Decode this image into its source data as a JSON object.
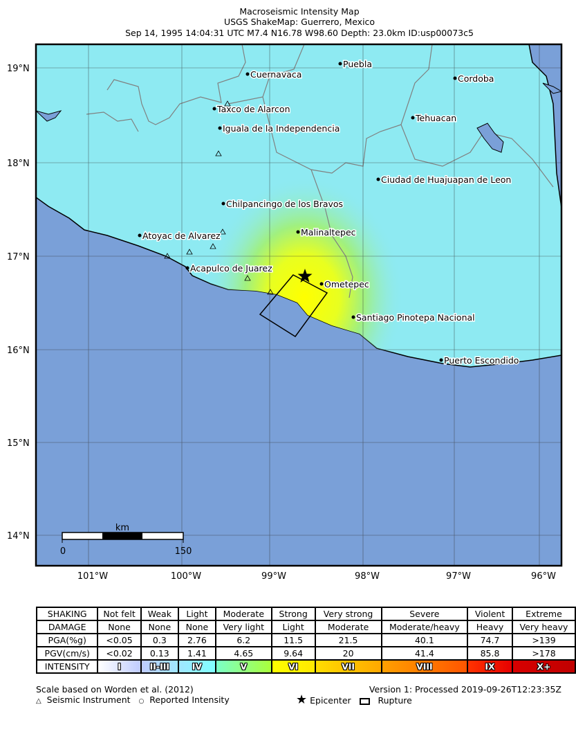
{
  "title": {
    "line1": "Macroseismic Intensity Map",
    "line2": "USGS ShakeMap: Guerrero, Mexico",
    "line3": "Sep 14, 1995 14:04:31 UTC M7.4 N16.78 W98.60 Depth: 23.0km ID:usp00073c5"
  },
  "map": {
    "lat_ticks": [
      "19°N",
      "18°N",
      "17°N",
      "16°N",
      "15°N",
      "14°N"
    ],
    "lon_ticks": [
      "101°W",
      "100°W",
      "99°W",
      "98°W",
      "97°W",
      "96°W"
    ],
    "cities": [
      "Puebla",
      "Cuernavaca",
      "Cordoba",
      "Taxco de Alarcon",
      "Tehuacan",
      "Iguala de la Independencia",
      "Ciudad de Huajuapan de Leon",
      "Chilpancingo de los Bravos",
      "Atoyac de Alvarez",
      "Malinaltepec",
      "Acapulco de Juarez",
      "Ometepec",
      "Santiago Pinotepa Nacional",
      "Puerto Escondido"
    ],
    "scale_bar": {
      "unit": "km",
      "start": "0",
      "end": "150"
    },
    "colors": {
      "ocean": "#7aa0d8",
      "land_low": "#8eeaf2",
      "strong": "#ffff00",
      "border": "#808080"
    }
  },
  "legend": {
    "rows": [
      {
        "header": "SHAKING",
        "cells": [
          "Not felt",
          "Weak",
          "Light",
          "Moderate",
          "Strong",
          "Very strong",
          "Severe",
          "Violent",
          "Extreme"
        ]
      },
      {
        "header": "DAMAGE",
        "cells": [
          "None",
          "None",
          "None",
          "Very light",
          "Light",
          "Moderate",
          "Moderate/heavy",
          "Heavy",
          "Very heavy"
        ]
      },
      {
        "header": "PGA(%g)",
        "cells": [
          "<0.05",
          "0.3",
          "2.76",
          "6.2",
          "11.5",
          "21.5",
          "40.1",
          "74.7",
          ">139"
        ]
      },
      {
        "header": "PGV(cm/s)",
        "cells": [
          "<0.02",
          "0.13",
          "1.41",
          "4.65",
          "9.64",
          "20",
          "41.4",
          "85.8",
          ">178"
        ]
      }
    ],
    "intensity": {
      "header": "INTENSITY",
      "cells": [
        "I",
        "II-III",
        "IV",
        "V",
        "VI",
        "VII",
        "VIII",
        "IX",
        "X+"
      ],
      "colors": [
        [
          "#ffffff",
          "#bfccff"
        ],
        [
          "#bfccff",
          "#a0e6ff"
        ],
        [
          "#a0e6ff",
          "#80ffff"
        ],
        [
          "#7affc8",
          "#aaff3a"
        ],
        [
          "#ffff00",
          "#ffe800"
        ],
        [
          "#ffdd00",
          "#ffa800"
        ],
        [
          "#ffa000",
          "#ff5500"
        ],
        [
          "#ff3300",
          "#e60000"
        ],
        [
          "#d80000",
          "#c00000"
        ]
      ]
    }
  },
  "footer": {
    "scale_note": "Scale based on Worden et al. (2012)",
    "version": "Version 1: Processed 2019-09-26T12:23:35Z",
    "seismic_instrument": "Seismic Instrument",
    "reported_intensity": "Reported Intensity",
    "epicenter": "Epicenter",
    "rupture": "Rupture"
  }
}
